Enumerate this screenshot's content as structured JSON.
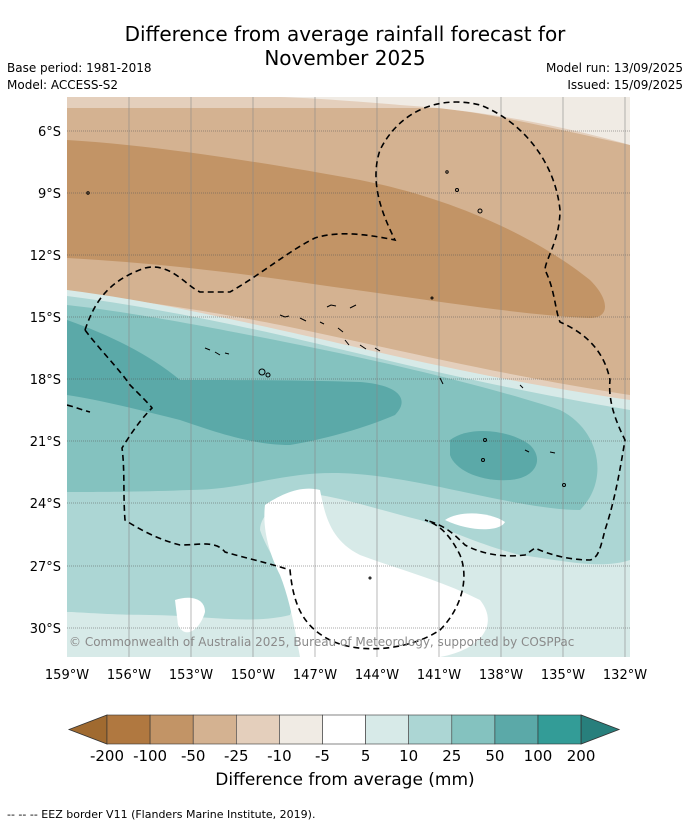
{
  "title_line1": "Difference from average rainfall forecast for",
  "title_line2": "November 2025",
  "base_period": "Base period: 1981-2018",
  "model": "Model: ACCESS-S2",
  "model_run": "Model run: 13/09/2025",
  "issued": "Issued: 15/09/2025",
  "copyright": "© Commonwealth of Australia 2025, Bureau of Meteorology, supported by COSPPac",
  "lat_labels": [
    "6°S",
    "9°S",
    "12°S",
    "15°S",
    "18°S",
    "21°S",
    "24°S",
    "27°S",
    "30°S"
  ],
  "lon_labels": [
    "159°W",
    "156°W",
    "153°W",
    "150°W",
    "147°W",
    "144°W",
    "141°W",
    "138°W",
    "135°W",
    "132°W"
  ],
  "colorbar": {
    "title": "Difference from average (mm)",
    "tick_labels": [
      "-200",
      "-100",
      "-50",
      "-25",
      "-10",
      "-5",
      "5",
      "10",
      "25",
      "50",
      "100",
      "200"
    ],
    "colors": [
      "#a06a30",
      "#b07840",
      "#c29466",
      "#d4b291",
      "#e4cfbc",
      "#f0ebe4",
      "#ffffff",
      "#d7eae8",
      "#acd6d4",
      "#84c2bf",
      "#5ba9a8",
      "#339c97",
      "#287f7c"
    ]
  },
  "eez_label": "--  --  -- EEZ border V11 (Flanders Marine Institute, 2019)."
}
